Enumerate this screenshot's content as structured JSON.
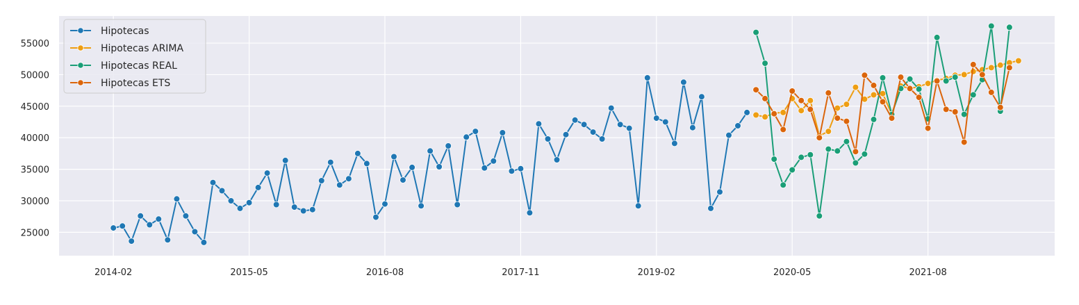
{
  "chart_data": {
    "type": "line",
    "title": "",
    "xlabel": "",
    "ylabel": "",
    "x_range": [
      "2013-08",
      "2022-10"
    ],
    "ylim": [
      21300,
      59300
    ],
    "grid": true,
    "legend_position": "top-left",
    "background": "#eaeaf2",
    "x_ticks": [
      "2014-02",
      "2015-05",
      "2016-08",
      "2017-11",
      "2019-02",
      "2020-05",
      "2021-08"
    ],
    "y_ticks": [
      25000,
      30000,
      35000,
      40000,
      45000,
      50000,
      55000
    ],
    "y_tick_labels": [
      "25000",
      "30000",
      "35000",
      "40000",
      "45000",
      "50000",
      "55000"
    ],
    "series": [
      {
        "name": "Hipotecas",
        "color": "#1f77b4",
        "start": "2014-02",
        "values": [
          25700,
          26000,
          23600,
          27600,
          26200,
          27100,
          23800,
          30300,
          27600,
          25100,
          23400,
          32900,
          31600,
          30000,
          28800,
          29700,
          32100,
          34400,
          29400,
          36400,
          29000,
          28400,
          28600,
          33200,
          36100,
          32500,
          33500,
          37500,
          35900,
          27400,
          29500,
          37000,
          33300,
          35300,
          29200,
          37900,
          35400,
          38700,
          29400,
          40100,
          41000,
          35200,
          36300,
          40800,
          34700,
          35100,
          28100,
          42200,
          39800,
          36500,
          40500,
          42800,
          42100,
          40900,
          39800,
          44700,
          42100,
          41500,
          29200,
          49500,
          43100,
          42500,
          39100,
          48800,
          41600,
          46500,
          28800,
          31400,
          40400,
          41900,
          44000
        ]
      },
      {
        "name": "Hipotecas ARIMA",
        "color": "#ee9e13",
        "start": "2020-01",
        "values": [
          43600,
          43300,
          43900,
          44000,
          46200,
          44300,
          45900,
          40300,
          41000,
          44700,
          45300,
          48000,
          46100,
          46800,
          47000,
          43700,
          48200,
          47800,
          48100,
          48600,
          49100,
          49400,
          49900,
          50000,
          50500,
          50800,
          51100,
          51500,
          51900,
          52200
        ]
      },
      {
        "name": "Hipotecas REAL",
        "color": "#1a9e77",
        "start": "2020-01",
        "values": [
          56700,
          51800,
          36600,
          32500,
          34900,
          36900,
          37300,
          27600,
          38200,
          37900,
          39400,
          36000,
          37400,
          42900,
          49500,
          43700,
          47800,
          49300,
          47700,
          43000,
          55900,
          49000,
          49600,
          43700,
          46800,
          49200,
          57700,
          44200,
          57500
        ]
      },
      {
        "name": "Hipotecas ETS",
        "color": "#db650b",
        "start": "2020-01",
        "values": [
          47600,
          46200,
          43800,
          41300,
          47400,
          45900,
          44500,
          40000,
          47100,
          43100,
          42600,
          37800,
          49900,
          48300,
          45700,
          43100,
          49600,
          47800,
          46400,
          41500,
          49000,
          44500,
          44100,
          39300,
          51600,
          50000,
          47200,
          44800,
          51100
        ]
      }
    ]
  }
}
